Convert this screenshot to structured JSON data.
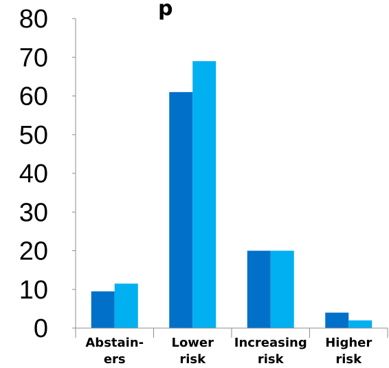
{
  "chart_data": {
    "type": "bar",
    "title": "p",
    "categories": [
      [
        "Abstain-",
        "ers"
      ],
      [
        "Lower",
        "risk"
      ],
      [
        "Increasing",
        "risk"
      ],
      [
        "Higher",
        "risk"
      ]
    ],
    "series": [
      {
        "values": [
          9.5,
          61,
          20,
          4
        ],
        "color": "#0070c8"
      },
      {
        "values": [
          11.5,
          69,
          20,
          2
        ],
        "color": "#00b0f0"
      }
    ],
    "ylim": [
      0,
      80
    ],
    "yticks": [
      0,
      10,
      20,
      30,
      40,
      50,
      60,
      70,
      80
    ],
    "grid": false,
    "legend": "none"
  }
}
